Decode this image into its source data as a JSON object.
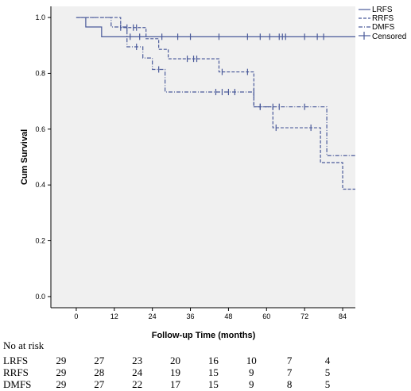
{
  "chart_data": {
    "type": "line",
    "step": true,
    "xlabel": "Follow-up Time (months)",
    "ylabel": "Cum Survival",
    "xlim": [
      -8,
      88
    ],
    "ylim": [
      -0.04,
      1.04
    ],
    "xticks": [
      "0",
      "12",
      "24",
      "36",
      "48",
      "60",
      "72",
      "84"
    ],
    "yticks": [
      "0.0",
      "0.2",
      "0.4",
      "0.6",
      "0.8",
      "1.0"
    ],
    "colors": {
      "line": "#4a5a9a",
      "plot_bg": "#f0f0f0",
      "axis": "#000000"
    },
    "legend_position": "top-right",
    "legend": [
      {
        "label": "LRFS",
        "style": "solid"
      },
      {
        "label": "RRFS",
        "style": "dashed"
      },
      {
        "label": "DMFS",
        "style": "dashdot"
      },
      {
        "label": "Censored",
        "style": "censor-mark"
      }
    ],
    "series": [
      {
        "name": "LRFS",
        "style": "solid",
        "steps": [
          [
            0,
            1.0
          ],
          [
            3,
            0.966
          ],
          [
            8,
            0.931
          ],
          [
            88,
            0.931
          ]
        ],
        "censored": [
          [
            17,
            0.931
          ],
          [
            20,
            0.931
          ],
          [
            27,
            0.931
          ],
          [
            32,
            0.931
          ],
          [
            36,
            0.931
          ],
          [
            45,
            0.931
          ],
          [
            54,
            0.931
          ],
          [
            58,
            0.931
          ],
          [
            61,
            0.931
          ],
          [
            64,
            0.931
          ],
          [
            65,
            0.931
          ],
          [
            66,
            0.931
          ],
          [
            72,
            0.931
          ],
          [
            76,
            0.931
          ],
          [
            78,
            0.931
          ]
        ]
      },
      {
        "name": "RRFS",
        "style": "dashed",
        "steps": [
          [
            0,
            1.0
          ],
          [
            14,
            0.964
          ],
          [
            22,
            0.924
          ],
          [
            26,
            0.886
          ],
          [
            29,
            0.852
          ],
          [
            45,
            0.805
          ],
          [
            56,
            0.68
          ],
          [
            62,
            0.605
          ],
          [
            77,
            0.48
          ],
          [
            84,
            0.385
          ],
          [
            88,
            0.385
          ]
        ],
        "censored": [
          [
            14,
            0.964
          ],
          [
            16,
            0.964
          ],
          [
            18,
            0.964
          ],
          [
            19,
            0.964
          ],
          [
            35,
            0.852
          ],
          [
            37,
            0.852
          ],
          [
            38,
            0.852
          ],
          [
            46,
            0.805
          ],
          [
            54,
            0.805
          ],
          [
            58,
            0.68
          ],
          [
            63,
            0.605
          ],
          [
            74,
            0.605
          ]
        ]
      },
      {
        "name": "DMFS",
        "style": "dashdot",
        "steps": [
          [
            0,
            1.0
          ],
          [
            11,
            0.966
          ],
          [
            16,
            0.895
          ],
          [
            21,
            0.855
          ],
          [
            24,
            0.814
          ],
          [
            28,
            0.733
          ],
          [
            56,
            0.68
          ],
          [
            79,
            0.505
          ],
          [
            88,
            0.505
          ]
        ],
        "censored": [
          [
            19,
            0.895
          ],
          [
            26,
            0.814
          ],
          [
            44,
            0.733
          ],
          [
            46,
            0.733
          ],
          [
            48,
            0.733
          ],
          [
            50,
            0.733
          ],
          [
            56,
            0.733
          ],
          [
            58,
            0.68
          ],
          [
            62,
            0.68
          ],
          [
            64,
            0.68
          ],
          [
            72,
            0.68
          ]
        ]
      }
    ]
  },
  "risk_table": {
    "title": "No at risk",
    "rows": [
      {
        "label": "LRFS",
        "values": [
          "29",
          "27",
          "23",
          "20",
          "16",
          "10",
          "7",
          "4"
        ]
      },
      {
        "label": "RRFS",
        "values": [
          "29",
          "28",
          "24",
          "19",
          "15",
          "9",
          "7",
          "5"
        ]
      },
      {
        "label": "DMFS",
        "values": [
          "29",
          "27",
          "22",
          "17",
          "15",
          "9",
          "8",
          "5"
        ]
      }
    ]
  }
}
